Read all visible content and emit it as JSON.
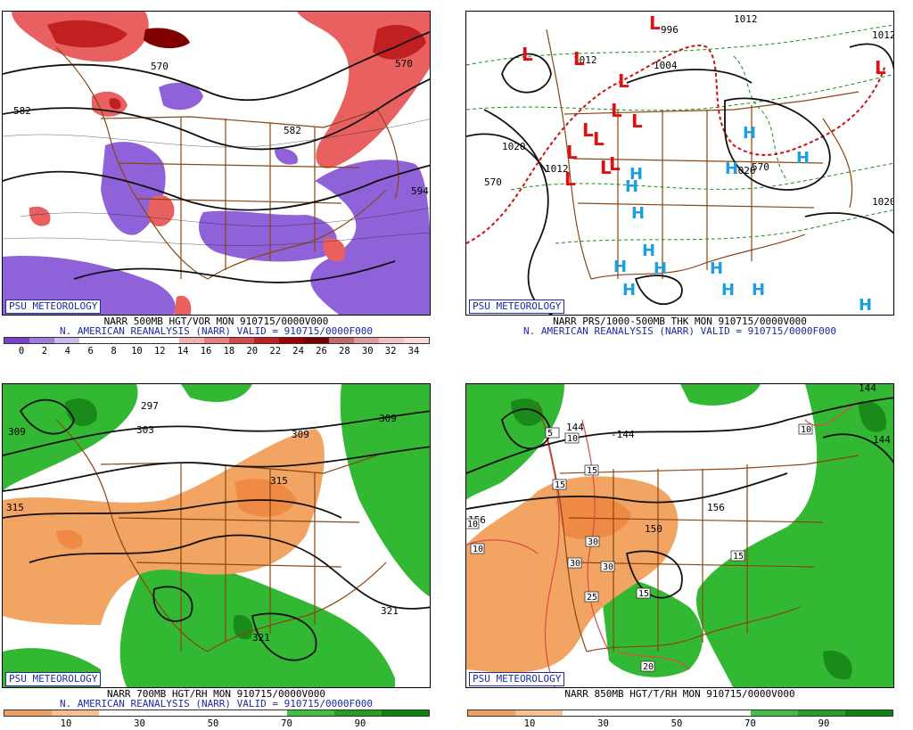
{
  "panels": [
    {
      "id": "tl",
      "badge": "PSU METEOROLOGY",
      "caption1": "NARR 500MB HGT/VOR MON 910715/0000V000",
      "caption2": "N. AMERICAN REANALYSIS (NARR) VALID = 910715/0000F000",
      "contour_labels": [
        "570",
        "582",
        "582",
        "570",
        "594"
      ],
      "colorbar": [
        "#7a3fd0",
        "#9f7ae0",
        "#c8b8f0",
        "#ffffff",
        "#ffffff",
        "#ffffff",
        "#ffffff",
        "#f2b0b0",
        "#e88080",
        "#d84a4a",
        "#c02020",
        "#a00000",
        "#7a0000",
        "#c46a6a",
        "#e09a9a",
        "#f2c2c2",
        "#fad8d8"
      ],
      "ticks": [
        "0",
        "2",
        "4",
        "6",
        "8",
        "10",
        "12",
        "14",
        "16",
        "18",
        "20",
        "22",
        "24",
        "26",
        "28",
        "30",
        "32",
        "34"
      ]
    },
    {
      "id": "tr",
      "badge": "PSU METEOROLOGY",
      "caption1": "NARR PRS/1000-500MB THK MON 910715/0000V000",
      "caption2": "N. AMERICAN REANALYSIS (NARR) VALID = 910715/0000F000",
      "contour_labels": [
        "1012",
        "1012",
        "1020",
        "1012",
        "1020",
        "1020",
        "1012",
        "1004",
        "996",
        "570",
        "570"
      ],
      "highs": [
        "H",
        "H",
        "H",
        "H",
        "H",
        "H",
        "H",
        "H",
        "H",
        "H",
        "H",
        "H",
        "H",
        "H"
      ],
      "lows": [
        "L",
        "L",
        "L",
        "L",
        "L",
        "L",
        "L",
        "L",
        "L",
        "L",
        "L",
        "L",
        "L"
      ]
    },
    {
      "id": "bl",
      "badge": "PSU METEOROLOGY",
      "caption1": "NARR 700MB HGT/RH MON 910715/0000V000",
      "caption2": "N. AMERICAN REANALYSIS (NARR) VALID = 910715/0000F000",
      "contour_labels": [
        "309",
        "297",
        "303",
        "315",
        "309",
        "309",
        "315",
        "321",
        "321"
      ],
      "colorbar": [
        "#f0a060",
        "#f7c090",
        "#ffffff",
        "#ffffff",
        "#ffffff",
        "#ffffff",
        "#40c040",
        "#20a020",
        "#108010"
      ],
      "ticks": [
        "10",
        "30",
        "50",
        "70",
        "90"
      ]
    },
    {
      "id": "br",
      "badge": "PSU METEOROLOGY",
      "caption1": "NARR 850MB HGT/T/RH MON 910715/0000V000",
      "caption2": "",
      "contour_labels": [
        "-144",
        "144",
        "144",
        "156",
        "156",
        "150",
        "144"
      ],
      "temp_labels": [
        "5",
        "10",
        "15",
        "15",
        "10",
        "10",
        "30",
        "30",
        "30",
        "25",
        "20",
        "15",
        "15",
        "10"
      ],
      "colorbar": [
        "#f0a060",
        "#f7c090",
        "#ffffff",
        "#ffffff",
        "#ffffff",
        "#ffffff",
        "#40c040",
        "#20a020",
        "#108010"
      ],
      "ticks": [
        "10",
        "30",
        "50",
        "70",
        "90"
      ]
    }
  ]
}
